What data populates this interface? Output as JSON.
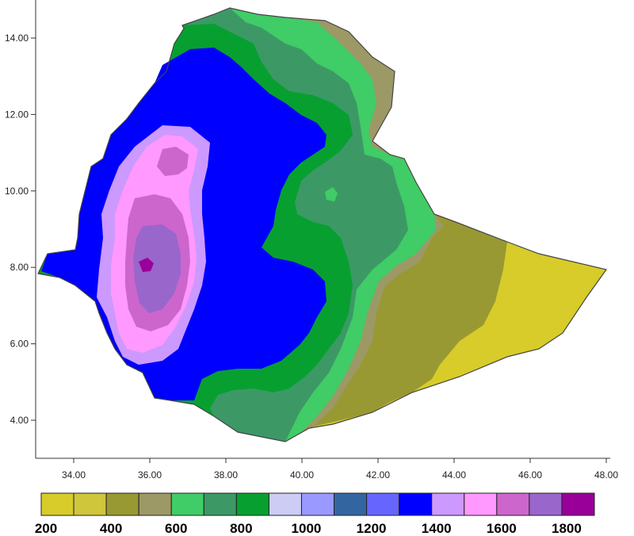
{
  "map": {
    "x_ticks": [
      "34.00",
      "36.00",
      "38.00",
      "40.00",
      "42.00",
      "44.00",
      "46.00",
      "48.00"
    ],
    "y_ticks": [
      "14.00",
      "12.00",
      "10.00",
      "8.00",
      "6.00",
      "4.00"
    ],
    "x_range": [
      33,
      48
    ],
    "y_range": [
      3.1,
      14.9
    ]
  },
  "legend": {
    "colors": [
      "#d7cc2a",
      "#cfc63c",
      "#999933",
      "#9c9966",
      "#40cc66",
      "#3c9966",
      "#07a030",
      "#ccccf5",
      "#9999ff",
      "#3366a0",
      "#6666ff",
      "#0000ff",
      "#cc99ff",
      "#ff99ff",
      "#cc66cc",
      "#9966cc",
      "#990099"
    ],
    "labels": [
      "200",
      "400",
      "600",
      "800",
      "1000",
      "1200",
      "1400",
      "1600",
      "1800"
    ]
  },
  "colors": {
    "yellow_light": "#d7cc2a",
    "olive": "#999933",
    "greyolive": "#9c9966",
    "green_light": "#40cc66",
    "green_mid": "#3c9966",
    "green_dark": "#07a030",
    "blue": "#0000ff",
    "lavender": "#cc99ff",
    "pink": "#ff99ff",
    "magenta": "#cc66cc",
    "purple": "#9966cc",
    "deep_purple": "#990099"
  }
}
